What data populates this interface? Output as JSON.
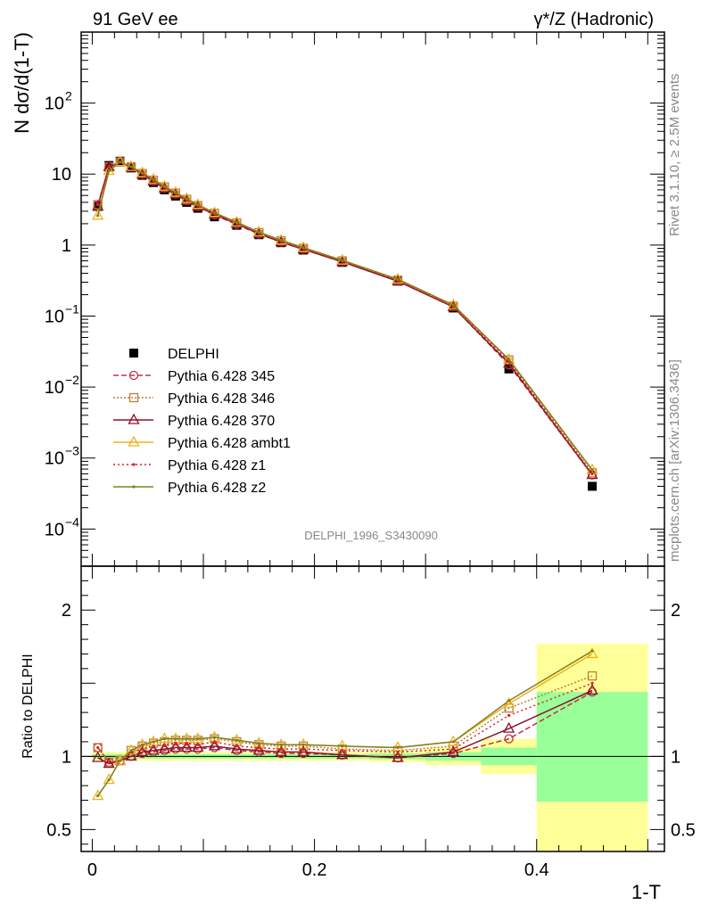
{
  "header": {
    "left_title": "91 GeV ee",
    "right_title": "γ*/Z (Hadronic)"
  },
  "side_labels": {
    "rivet": "Rivet 3.1.10, ≥ 2.5M events",
    "mcplots": "mcplots.cern.ch [arXiv:1306.3436]"
  },
  "watermark": "DELPHI_1996_S3430090",
  "chart_data": [
    {
      "panel": "main",
      "type": "line",
      "ylabel": "N dσ/d(1-T)",
      "yscale": "log",
      "ylim": [
        3e-05,
        1000
      ],
      "xlim": [
        -0.01,
        0.515
      ],
      "y_ticks": [
        {
          "v": 0.0001,
          "m": "10",
          "e": "−4"
        },
        {
          "v": 0.001,
          "m": "10",
          "e": "−3"
        },
        {
          "v": 0.01,
          "m": "10",
          "e": "−2"
        },
        {
          "v": 0.1,
          "m": "10",
          "e": "−1"
        },
        {
          "v": 1,
          "m": "1",
          "e": ""
        },
        {
          "v": 10,
          "m": "10",
          "e": ""
        },
        {
          "v": 100,
          "m": "10",
          "e": "2"
        }
      ],
      "x": [
        0.005,
        0.015,
        0.025,
        0.035,
        0.045,
        0.055,
        0.065,
        0.075,
        0.085,
        0.095,
        0.11,
        0.13,
        0.15,
        0.17,
        0.19,
        0.225,
        0.275,
        0.325,
        0.375,
        0.45
      ],
      "data": {
        "name": "DELPHI",
        "values": [
          3.5,
          13.2,
          15.2,
          12.2,
          9.6,
          7.6,
          6.0,
          4.9,
          4.0,
          3.3,
          2.5,
          1.9,
          1.4,
          1.08,
          0.85,
          0.57,
          0.31,
          0.13,
          0.018,
          0.0004
        ]
      },
      "series": [
        {
          "name": "Pythia 6.428 345",
          "color": "#c0304a",
          "dash": "6,3",
          "marker": "circle-open",
          "values": [
            3.7,
            12.6,
            14.8,
            12.5,
            9.9,
            7.9,
            6.3,
            5.2,
            4.2,
            3.5,
            2.65,
            1.95,
            1.43,
            1.1,
            0.87,
            0.58,
            0.31,
            0.135,
            0.0205,
            0.00058
          ]
        },
        {
          "name": "Pythia 6.428 346",
          "color": "#b8813c",
          "dash": "2,2",
          "marker": "square-open",
          "values": [
            3.7,
            12.6,
            14.8,
            12.7,
            10.2,
            8.2,
            6.6,
            5.4,
            4.4,
            3.6,
            2.8,
            2.05,
            1.5,
            1.15,
            0.9,
            0.6,
            0.32,
            0.138,
            0.024,
            0.00062
          ]
        },
        {
          "name": "Pythia 6.428 370",
          "color": "#8c1428",
          "dash": "",
          "marker": "triangle-open",
          "values": [
            3.5,
            12.6,
            14.8,
            12.4,
            9.9,
            7.9,
            6.3,
            5.2,
            4.2,
            3.5,
            2.7,
            2.0,
            1.45,
            1.1,
            0.87,
            0.58,
            0.31,
            0.134,
            0.0215,
            0.00058
          ]
        },
        {
          "name": "Pythia 6.428 ambt1",
          "color": "#f0b020",
          "dash": "",
          "marker": "triangle-open",
          "values": [
            2.6,
            11.1,
            14.8,
            12.7,
            10.4,
            8.4,
            6.7,
            5.5,
            4.5,
            3.7,
            2.85,
            2.1,
            1.52,
            1.17,
            0.92,
            0.61,
            0.33,
            0.143,
            0.0245,
            0.00068
          ]
        },
        {
          "name": "Pythia 6.428 z1",
          "color": "#e02020",
          "dash": "2,3",
          "marker": "dot",
          "values": [
            3.7,
            12.6,
            14.8,
            12.6,
            10.1,
            8.1,
            6.5,
            5.3,
            4.3,
            3.55,
            2.75,
            2.02,
            1.48,
            1.13,
            0.89,
            0.595,
            0.32,
            0.136,
            0.023,
            0.0006
          ]
        },
        {
          "name": "Pythia 6.428 z2",
          "color": "#808020",
          "dash": "",
          "marker": "dot",
          "values": [
            2.6,
            11.1,
            14.8,
            12.7,
            10.4,
            8.4,
            6.7,
            5.5,
            4.5,
            3.7,
            2.85,
            2.1,
            1.52,
            1.17,
            0.92,
            0.61,
            0.33,
            0.143,
            0.0245,
            0.00068
          ]
        }
      ]
    },
    {
      "panel": "ratio",
      "type": "line",
      "ylabel": "Ratio to DELPHI",
      "xlabel": "1-T",
      "ylim": [
        0.35,
        2.3
      ],
      "xlim": [
        -0.01,
        0.515
      ],
      "y_ticks": [
        {
          "v": 0.5,
          "label": "0.5"
        },
        {
          "v": 1,
          "label": "1"
        },
        {
          "v": 2,
          "label": "2"
        }
      ],
      "x_ticks": [
        {
          "v": 0,
          "label": "0"
        },
        {
          "v": 0.2,
          "label": "0.2"
        },
        {
          "v": 0.4,
          "label": "0.4"
        }
      ],
      "bands": [
        {
          "lo": 0.0,
          "hi": 0.25,
          "inner": [
            0.985,
            1.015
          ],
          "outer": [
            0.97,
            1.03
          ]
        },
        {
          "lo": 0.25,
          "hi": 0.3,
          "inner": [
            0.98,
            1.02
          ],
          "outer": [
            0.96,
            1.04
          ]
        },
        {
          "lo": 0.3,
          "hi": 0.35,
          "inner": [
            0.97,
            1.03
          ],
          "outer": [
            0.94,
            1.06
          ]
        },
        {
          "lo": 0.35,
          "hi": 0.4,
          "inner": [
            0.94,
            1.06
          ],
          "outer": [
            0.88,
            1.12
          ]
        },
        {
          "lo": 0.4,
          "hi": 0.5,
          "inner": [
            0.69,
            1.44
          ],
          "outer": [
            0.35,
            1.77
          ]
        }
      ],
      "x": [
        0.005,
        0.015,
        0.025,
        0.035,
        0.045,
        0.055,
        0.065,
        0.075,
        0.085,
        0.095,
        0.11,
        0.13,
        0.15,
        0.17,
        0.19,
        0.225,
        0.275,
        0.325,
        0.375,
        0.45
      ],
      "series": [
        {
          "name": "Pythia 6.428 345",
          "values": [
            1.06,
            0.96,
            0.97,
            1.0,
            1.02,
            1.03,
            1.04,
            1.05,
            1.05,
            1.05,
            1.06,
            1.04,
            1.03,
            1.02,
            1.02,
            1.01,
            0.99,
            1.02,
            1.12,
            1.44
          ]
        },
        {
          "name": "Pythia 6.428 346",
          "values": [
            1.06,
            0.96,
            0.97,
            1.04,
            1.07,
            1.09,
            1.1,
            1.11,
            1.11,
            1.11,
            1.12,
            1.1,
            1.08,
            1.07,
            1.07,
            1.05,
            1.04,
            1.07,
            1.33,
            1.55
          ]
        },
        {
          "name": "Pythia 6.428 370",
          "values": [
            0.99,
            0.95,
            0.97,
            1.0,
            1.03,
            1.04,
            1.05,
            1.06,
            1.06,
            1.06,
            1.07,
            1.05,
            1.04,
            1.03,
            1.03,
            1.01,
            0.99,
            1.03,
            1.19,
            1.45
          ]
        },
        {
          "name": "Pythia 6.428 ambt1",
          "values": [
            0.73,
            0.84,
            0.97,
            1.04,
            1.08,
            1.1,
            1.12,
            1.12,
            1.12,
            1.12,
            1.13,
            1.11,
            1.09,
            1.08,
            1.08,
            1.07,
            1.06,
            1.1,
            1.36,
            1.7
          ]
        },
        {
          "name": "Pythia 6.428 z1",
          "values": [
            1.06,
            0.96,
            0.97,
            1.03,
            1.05,
            1.07,
            1.08,
            1.09,
            1.09,
            1.08,
            1.1,
            1.07,
            1.06,
            1.05,
            1.05,
            1.04,
            1.03,
            1.05,
            1.28,
            1.5
          ]
        },
        {
          "name": "Pythia 6.428 z2",
          "values": [
            0.73,
            0.84,
            0.97,
            1.04,
            1.08,
            1.1,
            1.12,
            1.12,
            1.12,
            1.12,
            1.13,
            1.11,
            1.09,
            1.08,
            1.08,
            1.07,
            1.06,
            1.1,
            1.38,
            1.72
          ]
        }
      ]
    }
  ]
}
